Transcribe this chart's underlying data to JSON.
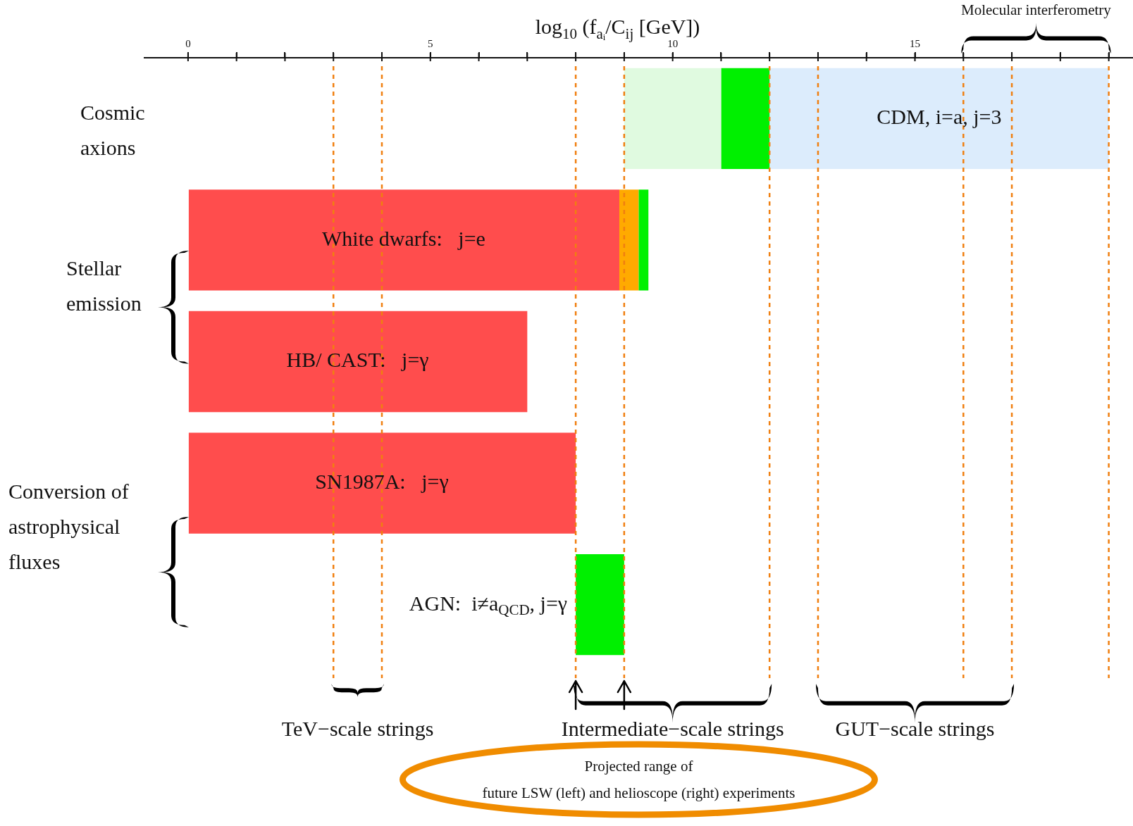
{
  "chart_data": {
    "type": "bar",
    "orientation": "horizontal",
    "xlabel": "log$_{10}$ (f$_{aᵢ}$/C$_{ij}$ [GeV])",
    "categories": [
      "CDM, i=a, j=3",
      "White dwarfs:   j=e",
      "HB/ CAST:   j=γ",
      "SN1987A:   j=γ",
      "AGN:  i≠a$_{QCD}$, j=γ"
    ],
    "series": [
      {
        "color": "#e0fae0",
        "base": [
          9,
          null,
          null,
          null,
          null
        ],
        "values": [
          2,
          null,
          null,
          null,
          null
        ]
      },
      {
        "color": "#00f000",
        "base": [
          11,
          9.3,
          null,
          null,
          8
        ],
        "values": [
          1,
          0.2,
          null,
          null,
          1
        ]
      },
      {
        "color": "#dcecfc",
        "base": [
          12,
          null,
          null,
          null,
          null
        ],
        "values": [
          7,
          null,
          null,
          null,
          null
        ]
      },
      {
        "color": "#ff4d4d",
        "base": [
          null,
          0,
          0,
          0,
          null
        ],
        "values": [
          null,
          8.9,
          7,
          8,
          null
        ]
      },
      {
        "color": "#ffaa00",
        "base": [
          null,
          8.9,
          null,
          null,
          null
        ],
        "values": [
          null,
          0.4,
          null,
          null,
          null
        ]
      }
    ],
    "xlim": [
      -0.9,
      19.5
    ],
    "xticks": [
      0,
      {
        "value": 1,
        "label": null
      },
      {
        "value": 2,
        "label": null
      },
      {
        "value": 3,
        "label": null
      },
      {
        "value": 4,
        "label": null
      },
      5,
      {
        "value": 6,
        "label": null
      },
      {
        "value": 7,
        "label": null
      },
      {
        "value": 8,
        "label": null
      },
      {
        "value": 9,
        "label": null
      },
      10,
      {
        "value": 11,
        "label": null
      },
      {
        "value": 12,
        "label": null
      },
      {
        "value": 13,
        "label": null
      },
      {
        "value": 14,
        "label": null
      },
      15,
      {
        "value": 16,
        "label": null
      },
      {
        "value": 17,
        "label": null
      },
      {
        "value": 18,
        "label": null
      },
      {
        "value": 19,
        "label": null
      }
    ],
    "ref_lines": [
      {
        "axis": "x",
        "value": 3,
        "color": "#f07f10",
        "line_style": "dashed"
      },
      {
        "axis": "x",
        "value": 4,
        "color": "#f07f10",
        "line_style": "dashed"
      },
      {
        "axis": "x",
        "value": 8,
        "color": "#f07f10",
        "line_style": "dashed"
      },
      {
        "axis": "x",
        "value": 9,
        "color": "#f07f10",
        "line_style": "dashed"
      },
      {
        "axis": "x",
        "value": 12,
        "color": "#f07f10",
        "line_style": "dashed"
      },
      {
        "axis": "x",
        "value": 13,
        "color": "#f07f10",
        "line_style": "dashed"
      },
      {
        "axis": "x",
        "value": 16,
        "color": "#f07f10",
        "line_style": "dashed"
      },
      {
        "axis": "x",
        "value": 17,
        "color": "#f07f10",
        "line_style": "dashed"
      },
      {
        "axis": "x",
        "value": 19,
        "color": "#f07f10",
        "line_style": "dashed"
      }
    ],
    "annotations": [
      "Cosmic axions",
      "Stellar emission",
      "Conversion of astrophysical fluxes",
      "TeV−scale strings",
      "Intermediate−scale strings",
      "GUT−scale strings",
      "Molecular interferometry",
      "Projected range of\nfuture LSW (left) and helioscope (right) experiments"
    ],
    "legend": false,
    "grid": false
  }
}
